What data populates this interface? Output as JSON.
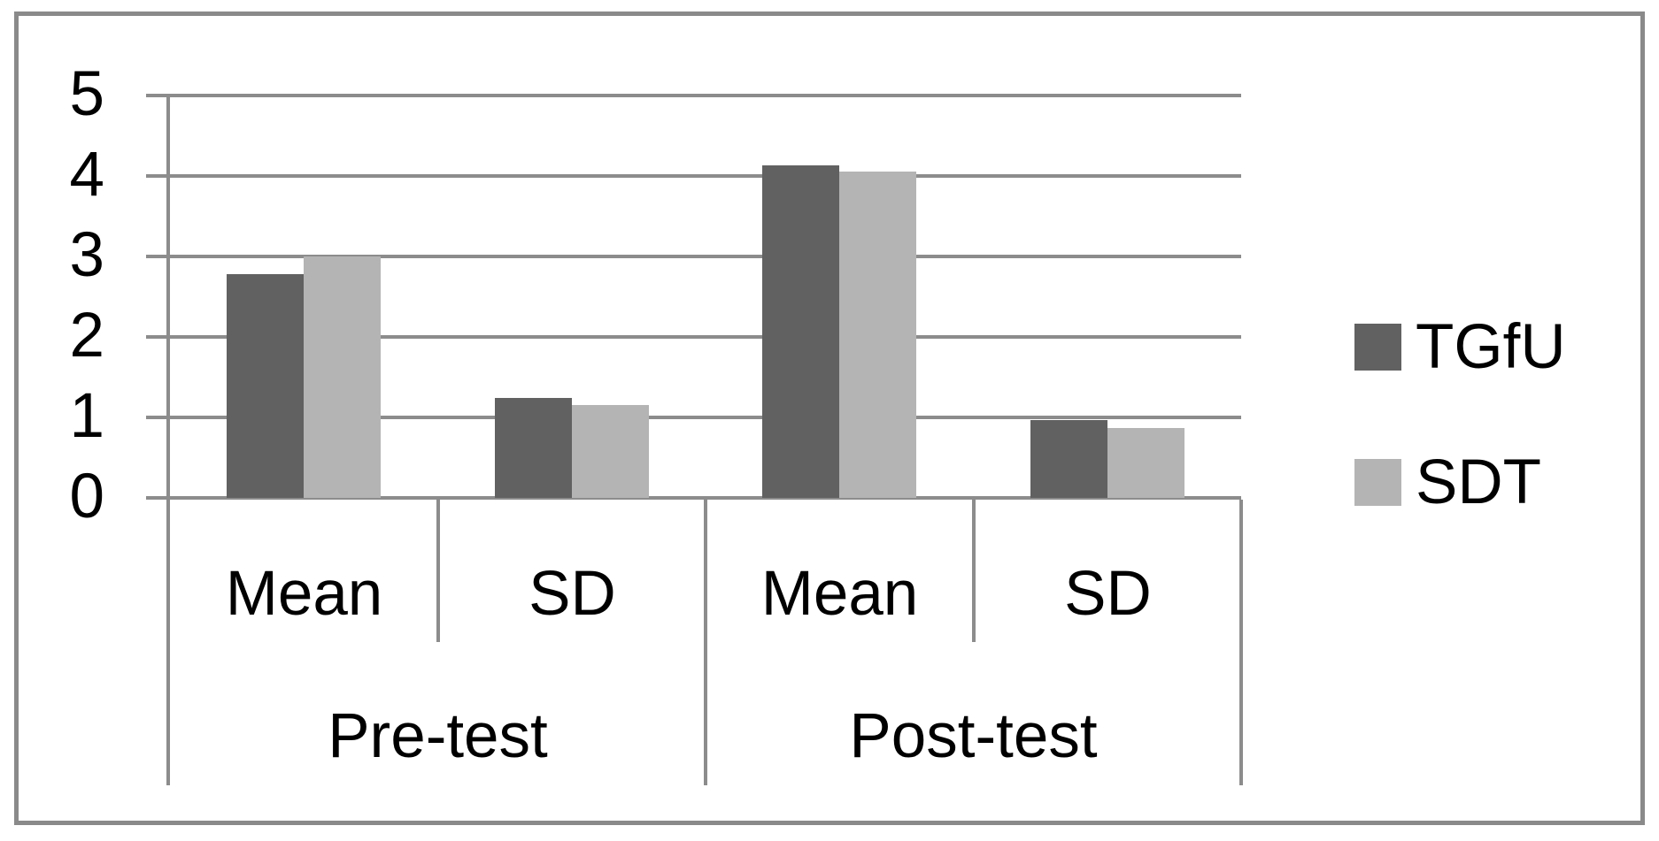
{
  "chart_data": {
    "type": "bar",
    "title": "",
    "groups": [
      "Pre-test",
      "Post-test"
    ],
    "categories": [
      "Mean",
      "SD",
      "Mean",
      "SD"
    ],
    "series": [
      {
        "name": "TGfU",
        "color": "#616161",
        "values": [
          2.78,
          1.24,
          4.13,
          0.97
        ]
      },
      {
        "name": "SDT",
        "color": "#b4b4b4",
        "values": [
          3.0,
          1.15,
          4.06,
          0.87
        ]
      }
    ],
    "ylim": [
      0,
      5
    ],
    "yticks": [
      "0",
      "1",
      "2",
      "3",
      "4",
      "5"
    ],
    "grid": true,
    "legend_position": "right",
    "colors": {
      "line": "#8c8c8c",
      "border": "#8a8a8a",
      "text": "#000000",
      "background": "#ffffff"
    }
  }
}
